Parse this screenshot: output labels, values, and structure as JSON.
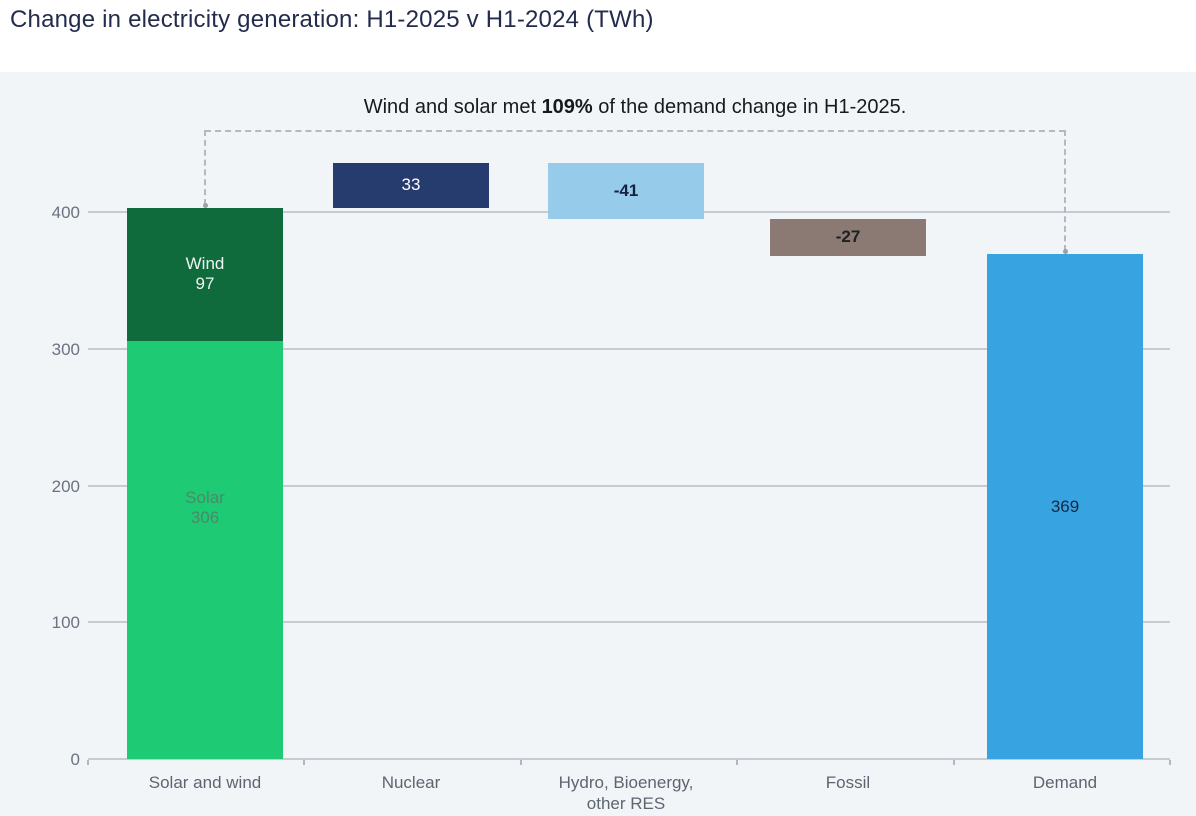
{
  "header": {
    "title": "Change in electricity generation: H1-2025 v H1-2024 (TWh)"
  },
  "annotation": {
    "prefix": "Wind and solar met ",
    "highlight": "109%",
    "suffix": " of the demand change in H1-2025."
  },
  "chart_data": {
    "type": "bar",
    "subtype": "waterfall",
    "title": "Change in electricity generation: H1-2025 v H1-2024 (TWh)",
    "unit": "TWh",
    "grid": true,
    "y_axis": {
      "ticks": [
        0,
        100,
        200,
        300,
        400
      ],
      "range": [
        0,
        436
      ]
    },
    "categories": [
      "Solar and wind",
      "Nuclear",
      "Hydro, Bioenergy,\nother RES",
      "Fossil",
      "Demand"
    ],
    "bars": [
      {
        "category": "Solar and wind",
        "kind": "stack",
        "total": 403,
        "segments": [
          {
            "name": "Solar",
            "value": 306,
            "label": "Solar\n306",
            "color": "#1ecb74",
            "label_color": "#4a8a68"
          },
          {
            "name": "Wind",
            "value": 97,
            "label": "Wind\n97",
            "color": "#0f6a3c",
            "label_color": "#eff5f1"
          }
        ]
      },
      {
        "category": "Nuclear",
        "kind": "delta",
        "value": 33,
        "label": "33",
        "color": "#263c6f",
        "label_color": "#ffffff",
        "label_bold": false
      },
      {
        "category": "Hydro, Bioenergy,\nother RES",
        "kind": "delta",
        "value": -41,
        "label": "-41",
        "color": "#97cbea",
        "label_color": "#15233f",
        "label_bold": true
      },
      {
        "category": "Fossil",
        "kind": "delta",
        "value": -27,
        "label": "-27",
        "color": "#8a7a73",
        "label_color": "#202024",
        "label_bold": true
      },
      {
        "category": "Demand",
        "kind": "total",
        "value": 369,
        "label": "369",
        "color": "#38a3e1",
        "label_color": "#132a46",
        "label_bold": false
      }
    ],
    "bracket": {
      "from_category": "Solar and wind",
      "to_category": "Demand"
    },
    "colors": {
      "background": "#f2f5f8",
      "top_band": "#ffffff",
      "gridline": "#c6cad2",
      "axis_text": "#5d6570",
      "title_text": "#242c4e",
      "bracket_line": "#b4b9c0"
    }
  }
}
